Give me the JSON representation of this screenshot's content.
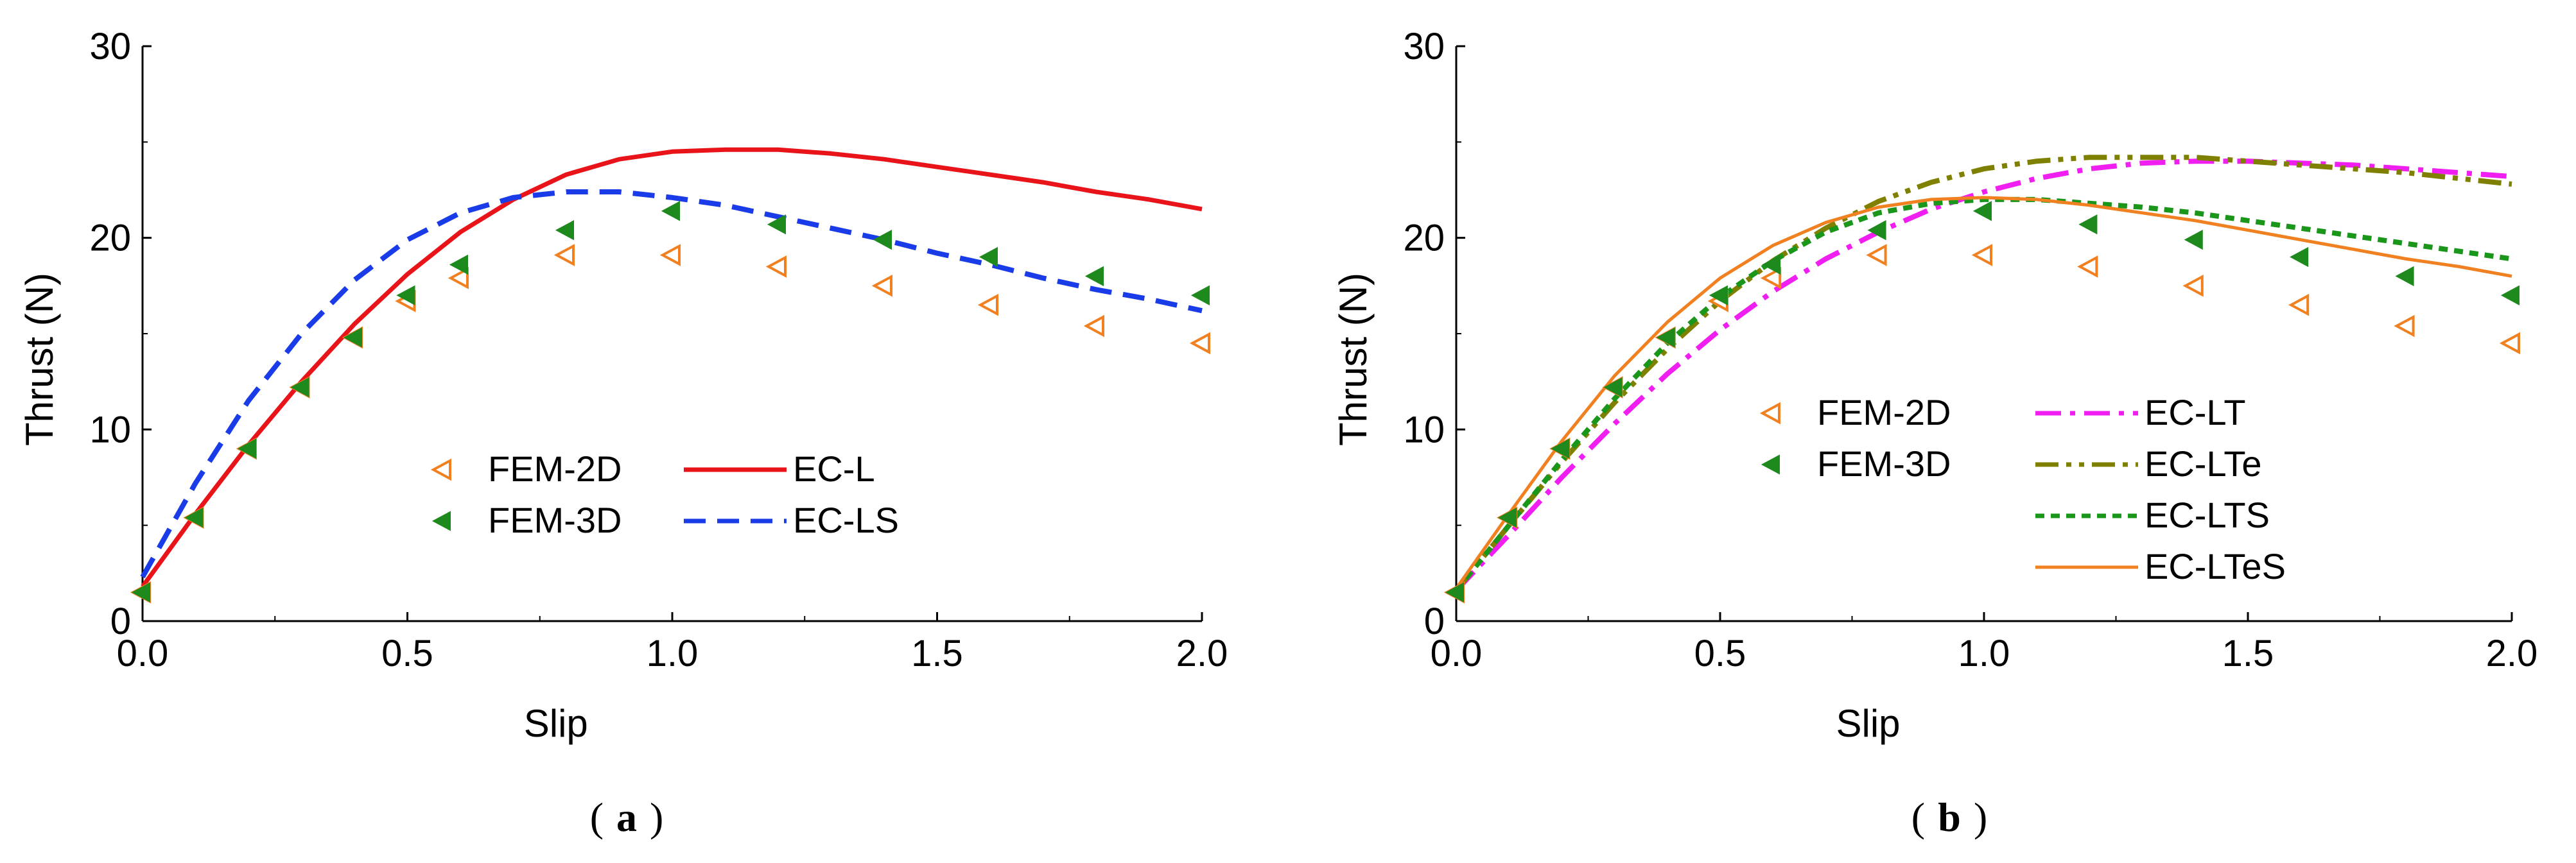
{
  "chart_data": [
    {
      "type": "scatter+line",
      "panel_label": "a",
      "xlabel": "Slip",
      "ylabel": "Thrust (N)",
      "xlim": [
        0,
        2
      ],
      "ylim": [
        0,
        30
      ],
      "xticks": [
        "0.0",
        "0.5",
        "1.0",
        "1.5",
        "2.0"
      ],
      "yticks": [
        "0",
        "10",
        "20",
        "30"
      ],
      "grid": false,
      "legend_position": "center",
      "scatter_series": [
        {
          "name": "FEM-2D",
          "marker": "open-left-triangle",
          "color": "#f08020",
          "x": [
            0,
            0.1,
            0.2,
            0.3,
            0.4,
            0.5,
            0.6,
            0.8,
            1.0,
            1.2,
            1.4,
            1.6,
            1.8,
            2.0
          ],
          "y": [
            1.5,
            5.4,
            9.0,
            12.2,
            14.8,
            16.7,
            17.9,
            19.1,
            19.1,
            18.5,
            17.5,
            16.5,
            15.4,
            14.5
          ]
        },
        {
          "name": "FEM-3D",
          "marker": "filled-left-triangle",
          "color": "#1e8a1e",
          "x": [
            0,
            0.1,
            0.2,
            0.3,
            0.4,
            0.5,
            0.6,
            0.8,
            1.0,
            1.2,
            1.4,
            1.6,
            1.8,
            2.0
          ],
          "y": [
            1.5,
            5.4,
            9.0,
            12.2,
            14.8,
            17.0,
            18.6,
            20.4,
            21.4,
            20.7,
            19.9,
            19.0,
            18.0,
            17.0
          ]
        }
      ],
      "line_series": [
        {
          "name": "EC-L",
          "style": "solid",
          "color": "#e8141a",
          "x": [
            0,
            0.1,
            0.2,
            0.3,
            0.4,
            0.5,
            0.6,
            0.7,
            0.8,
            0.9,
            1.0,
            1.1,
            1.2,
            1.3,
            1.4,
            1.5,
            1.6,
            1.7,
            1.8,
            1.9,
            2.0
          ],
          "y": [
            1.8,
            5.6,
            9.2,
            12.5,
            15.5,
            18.1,
            20.3,
            22.0,
            23.3,
            24.1,
            24.5,
            24.6,
            24.6,
            24.4,
            24.1,
            23.7,
            23.3,
            22.9,
            22.4,
            22.0,
            21.5
          ]
        },
        {
          "name": "EC-LS",
          "style": "dashed",
          "color": "#1a3ce8",
          "x": [
            0,
            0.1,
            0.2,
            0.3,
            0.4,
            0.5,
            0.6,
            0.7,
            0.8,
            0.9,
            1.0,
            1.1,
            1.2,
            1.3,
            1.4,
            1.5,
            1.6,
            1.7,
            1.8,
            1.9,
            2.0
          ],
          "y": [
            2.3,
            7.2,
            11.5,
            15.0,
            17.8,
            19.9,
            21.3,
            22.1,
            22.4,
            22.4,
            22.1,
            21.7,
            21.1,
            20.5,
            19.9,
            19.2,
            18.6,
            17.9,
            17.3,
            16.8,
            16.2
          ]
        }
      ]
    },
    {
      "type": "scatter+line",
      "panel_label": "b",
      "xlabel": "Slip",
      "ylabel": "Thrust (N)",
      "xlim": [
        0,
        2
      ],
      "ylim": [
        0,
        30
      ],
      "xticks": [
        "0.0",
        "0.5",
        "1.0",
        "1.5",
        "2.0"
      ],
      "yticks": [
        "0",
        "10",
        "20",
        "30"
      ],
      "grid": false,
      "legend_position": "bottom-right",
      "scatter_series": [
        {
          "name": "FEM-2D",
          "marker": "open-left-triangle",
          "color": "#f08020",
          "x": [
            0,
            0.1,
            0.2,
            0.3,
            0.4,
            0.5,
            0.6,
            0.8,
            1.0,
            1.2,
            1.4,
            1.6,
            1.8,
            2.0
          ],
          "y": [
            1.5,
            5.4,
            9.0,
            12.2,
            14.8,
            16.7,
            17.9,
            19.1,
            19.1,
            18.5,
            17.5,
            16.5,
            15.4,
            14.5
          ]
        },
        {
          "name": "FEM-3D",
          "marker": "filled-left-triangle",
          "color": "#1e8a1e",
          "x": [
            0,
            0.1,
            0.2,
            0.3,
            0.4,
            0.5,
            0.6,
            0.8,
            1.0,
            1.2,
            1.4,
            1.6,
            1.8,
            2.0
          ],
          "y": [
            1.5,
            5.4,
            9.0,
            12.2,
            14.8,
            17.0,
            18.6,
            20.4,
            21.4,
            20.7,
            19.9,
            19.0,
            18.0,
            17.0
          ]
        }
      ],
      "line_series": [
        {
          "name": "EC-LT",
          "style": "dashdot",
          "color": "#f01ef0",
          "x": [
            0,
            0.1,
            0.2,
            0.3,
            0.4,
            0.5,
            0.6,
            0.7,
            0.8,
            0.9,
            1.0,
            1.1,
            1.2,
            1.3,
            1.4,
            1.5,
            1.6,
            1.7,
            1.8,
            1.9,
            2.0
          ],
          "y": [
            1.6,
            4.5,
            7.5,
            10.3,
            12.9,
            15.2,
            17.2,
            18.9,
            20.3,
            21.5,
            22.4,
            23.1,
            23.6,
            23.9,
            24.0,
            24.0,
            23.9,
            23.8,
            23.6,
            23.4,
            23.2
          ]
        },
        {
          "name": "EC-LTe",
          "style": "dashdotdot",
          "color": "#808000",
          "x": [
            0,
            0.1,
            0.2,
            0.3,
            0.4,
            0.5,
            0.6,
            0.7,
            0.8,
            0.9,
            1.0,
            1.1,
            1.2,
            1.3,
            1.4,
            1.5,
            1.6,
            1.7,
            1.8,
            1.9,
            2.0
          ],
          "y": [
            1.6,
            5.0,
            8.3,
            11.4,
            14.2,
            16.7,
            18.8,
            20.5,
            21.9,
            22.9,
            23.6,
            24.0,
            24.2,
            24.2,
            24.2,
            24.0,
            23.8,
            23.6,
            23.4,
            23.1,
            22.8
          ]
        },
        {
          "name": "EC-LTS",
          "style": "dotted",
          "color": "#1a961a",
          "x": [
            0,
            0.1,
            0.2,
            0.3,
            0.4,
            0.5,
            0.6,
            0.7,
            0.8,
            0.9,
            1.0,
            1.1,
            1.2,
            1.3,
            1.4,
            1.5,
            1.6,
            1.7,
            1.8,
            1.9,
            2.0
          ],
          "y": [
            1.6,
            5.0,
            8.4,
            11.6,
            14.5,
            16.9,
            18.8,
            20.3,
            21.3,
            21.8,
            22.0,
            22.0,
            21.8,
            21.6,
            21.3,
            20.9,
            20.5,
            20.1,
            19.7,
            19.3,
            18.9
          ]
        },
        {
          "name": "EC-LTeS",
          "style": "solid",
          "color": "#f08020",
          "x": [
            0,
            0.1,
            0.2,
            0.3,
            0.4,
            0.5,
            0.6,
            0.7,
            0.8,
            0.9,
            1.0,
            1.1,
            1.2,
            1.3,
            1.4,
            1.5,
            1.6,
            1.7,
            1.8,
            1.9,
            2.0
          ],
          "y": [
            1.7,
            5.6,
            9.4,
            12.8,
            15.6,
            17.9,
            19.6,
            20.8,
            21.6,
            22.0,
            22.1,
            22.0,
            21.7,
            21.3,
            20.9,
            20.4,
            19.9,
            19.4,
            18.9,
            18.5,
            18.0
          ]
        }
      ]
    }
  ]
}
